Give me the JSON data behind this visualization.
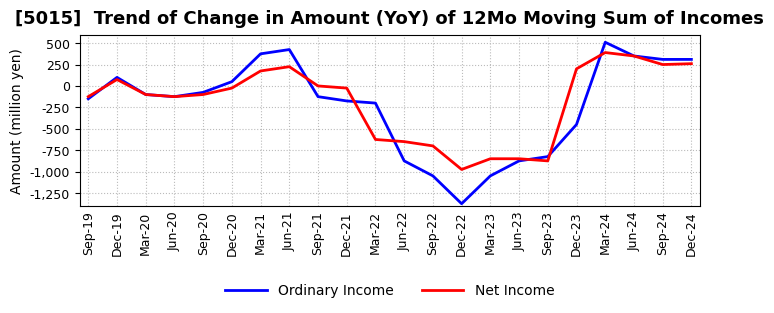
{
  "title": "[5015]  Trend of Change in Amount (YoY) of 12Mo Moving Sum of Incomes",
  "ylabel": "Amount (million yen)",
  "background_color": "#ffffff",
  "plot_bg_color": "#ffffff",
  "grid_color": "#bbbbbb",
  "x_labels": [
    "Sep-19",
    "Dec-19",
    "Mar-20",
    "Jun-20",
    "Sep-20",
    "Dec-20",
    "Mar-21",
    "Jun-21",
    "Sep-21",
    "Dec-21",
    "Mar-22",
    "Jun-22",
    "Sep-22",
    "Dec-22",
    "Mar-23",
    "Jun-23",
    "Sep-23",
    "Dec-23",
    "Mar-24",
    "Jun-24",
    "Sep-24",
    "Dec-24"
  ],
  "ordinary_income": [
    -150,
    100,
    -100,
    -125,
    -75,
    50,
    375,
    425,
    -125,
    -175,
    -200,
    -875,
    -1050,
    -1375,
    -1050,
    -875,
    -825,
    -450,
    510,
    350,
    310,
    310
  ],
  "net_income": [
    -125,
    75,
    -100,
    -125,
    -100,
    -25,
    175,
    225,
    0,
    -25,
    -625,
    -650,
    -700,
    -975,
    -850,
    -850,
    -875,
    200,
    390,
    350,
    250,
    260
  ],
  "ordinary_color": "#0000ff",
  "net_color": "#ff0000",
  "ylim": [
    -1400,
    600
  ],
  "yticks": [
    500,
    250,
    0,
    -250,
    -500,
    -750,
    -1000,
    -1250
  ],
  "title_fontsize": 13,
  "axis_fontsize": 10,
  "tick_fontsize": 9,
  "legend_labels": [
    "Ordinary Income",
    "Net Income"
  ]
}
